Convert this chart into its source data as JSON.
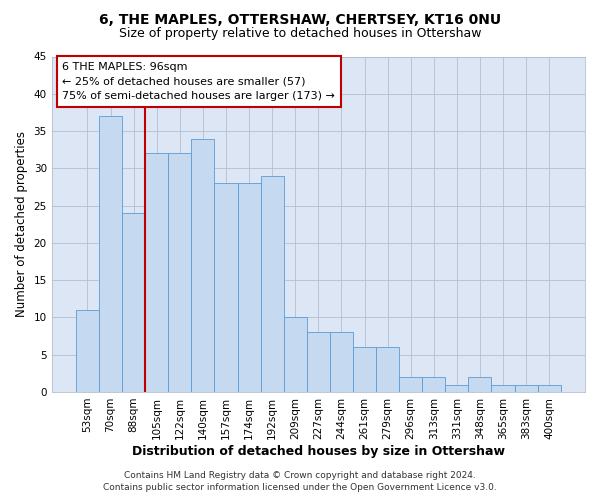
{
  "title": "6, THE MAPLES, OTTERSHAW, CHERTSEY, KT16 0NU",
  "subtitle": "Size of property relative to detached houses in Ottershaw",
  "xlabel": "Distribution of detached houses by size in Ottershaw",
  "ylabel": "Number of detached properties",
  "categories": [
    "53sqm",
    "70sqm",
    "88sqm",
    "105sqm",
    "122sqm",
    "140sqm",
    "157sqm",
    "174sqm",
    "192sqm",
    "209sqm",
    "227sqm",
    "244sqm",
    "261sqm",
    "279sqm",
    "296sqm",
    "313sqm",
    "331sqm",
    "348sqm",
    "365sqm",
    "383sqm",
    "400sqm"
  ],
  "values": [
    11,
    37,
    24,
    32,
    32,
    34,
    28,
    28,
    29,
    10,
    8,
    8,
    6,
    6,
    2,
    2,
    1,
    2,
    1,
    1,
    1
  ],
  "bar_color": "#c5d9f0",
  "bar_edge_color": "#5b9bd5",
  "ylim": [
    0,
    45
  ],
  "yticks": [
    0,
    5,
    10,
    15,
    20,
    25,
    30,
    35,
    40,
    45
  ],
  "vline_color": "#c00000",
  "vline_index": 2.5,
  "annotation_text_line1": "6 THE MAPLES: 96sqm",
  "annotation_text_line2": "← 25% of detached houses are smaller (57)",
  "annotation_text_line3": "75% of semi-detached houses are larger (173) →",
  "annotation_box_color": "#ffffff",
  "annotation_box_edge_color": "#c00000",
  "footer_line1": "Contains HM Land Registry data © Crown copyright and database right 2024.",
  "footer_line2": "Contains public sector information licensed under the Open Government Licence v3.0.",
  "fig_bg_color": "#ffffff",
  "plot_bg_color": "#dce6f5",
  "title_fontsize": 10,
  "subtitle_fontsize": 9,
  "tick_fontsize": 7.5,
  "ylabel_fontsize": 8.5,
  "xlabel_fontsize": 9,
  "annotation_fontsize": 8,
  "footer_fontsize": 6.5,
  "grid_color": "#b0bfd0"
}
